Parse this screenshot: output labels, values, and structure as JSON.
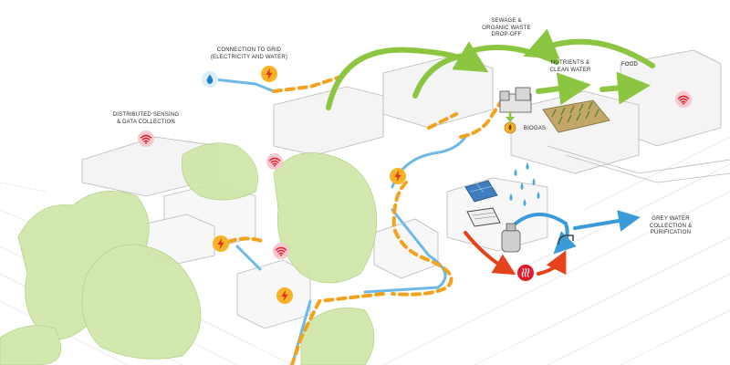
{
  "labels": {
    "connection_grid": [
      "CONNECTION TO GRID",
      "(ELECTRICITY AND WATER)"
    ],
    "sewage": [
      "SEWAGE &",
      "ORGANIC WASTE",
      "DROP-OFF"
    ],
    "nutrients": [
      "NUTRIENTS &",
      "CLEAN WATER"
    ],
    "food": [
      "FOOD"
    ],
    "biogas": [
      "BIOGAS"
    ],
    "sensing": [
      "DISTRIBUTED SENSING",
      "& DATA COLLECTION"
    ],
    "grey_water": [
      "GREY WATER",
      "COLLECTION &",
      "PURIFICATION"
    ]
  },
  "colors": {
    "wifi_badge": "#f7c9cf",
    "wifi_symbol": "#e5182a",
    "power_badge": "#f6b325",
    "power_symbol": "#e33021",
    "water_badge": "#dceefa",
    "water_symbol": "#1f7fc2",
    "flow_arrow": "#8cc540",
    "grey_arrow": "#3b9ad8",
    "heat_arrow": "#e5431c",
    "energy_dash": "#f3a21d",
    "water_line": "#6fb9e6",
    "vegetation": "#cfe6a6"
  },
  "icons": {
    "wifi": "wifi-icon",
    "power": "lightning-bolt-icon",
    "water": "water-drop-icon",
    "heat": "heat-waves-icon",
    "biogas": "biogas-tank-icon"
  }
}
